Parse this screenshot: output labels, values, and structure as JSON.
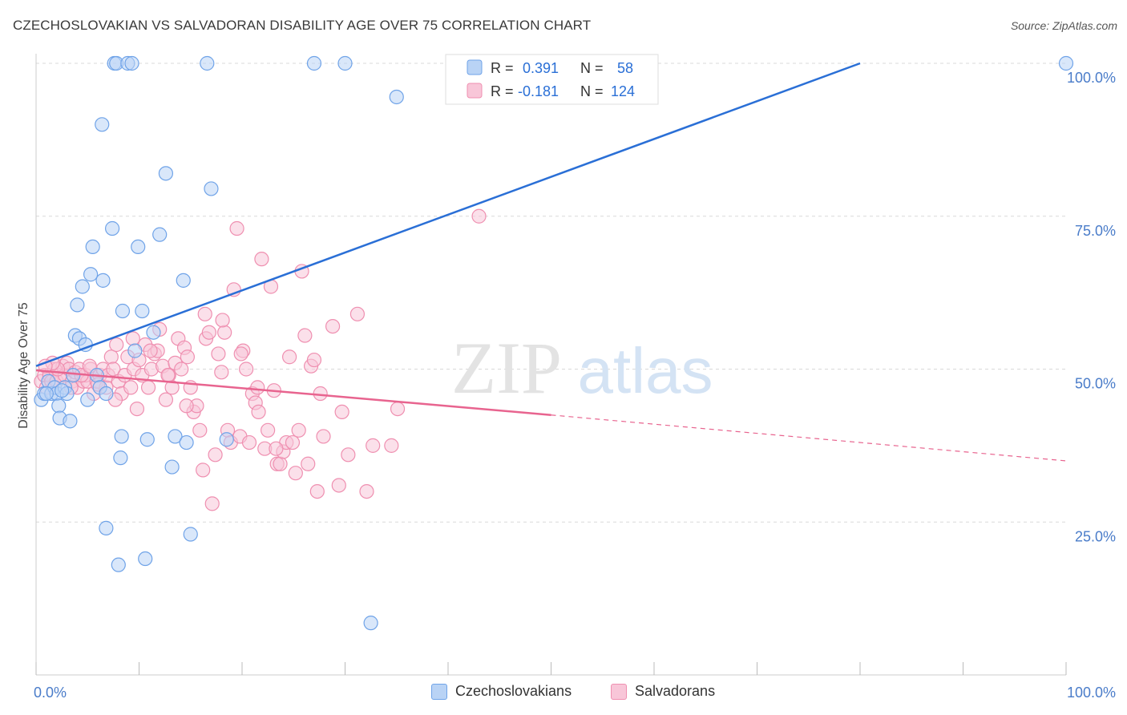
{
  "title": "CZECHOSLOVAKIAN VS SALVADORAN DISABILITY AGE OVER 75 CORRELATION CHART",
  "source_label": "Source: ZipAtlas.com",
  "watermark": {
    "zip": "ZIP",
    "atlas": "atlas"
  },
  "colors": {
    "blue": "#6fa3e8",
    "blue_fill": "#b9d3f5",
    "blue_line": "#2a6fd6",
    "pink": "#ef8fb0",
    "pink_fill": "#f8c6d8",
    "pink_line": "#e8648f",
    "axis_text": "#4a7cc9",
    "grid": "#d9d9d9"
  },
  "legend_top": {
    "rows": [
      {
        "r_label": "R =",
        "r_value": "0.391",
        "n_label": "N =",
        "n_value": "58",
        "color": "blue"
      },
      {
        "r_label": "R =",
        "r_value": "-0.181",
        "n_label": "N =",
        "n_value": "124",
        "color": "pink"
      }
    ]
  },
  "legend_bottom": [
    {
      "label": "Czechoslovakians",
      "color": "blue"
    },
    {
      "label": "Salvadorans",
      "color": "pink"
    }
  ],
  "chart_data": {
    "type": "scatter",
    "title": "CZECHOSLOVAKIAN VS SALVADORAN DISABILITY AGE OVER 75 CORRELATION CHART",
    "xlabel": "",
    "ylabel": "Disability Age Over 75",
    "xlim": [
      0,
      100
    ],
    "ylim": [
      0,
      100
    ],
    "x_tick_labels": [
      "0.0%",
      "100.0%"
    ],
    "y_ticks": [
      25,
      50,
      75,
      100
    ],
    "y_tick_labels": [
      "25.0%",
      "50.0%",
      "75.0%",
      "100.0%"
    ],
    "grid": true,
    "series": [
      {
        "name": "Czechoslovakians",
        "r": 0.391,
        "n": 58,
        "trend": {
          "x": [
            0,
            80
          ],
          "y": [
            50.5,
            100
          ],
          "dashed_extension": false
        },
        "points": [
          [
            0.5,
            45
          ],
          [
            0.8,
            46
          ],
          [
            1.2,
            48
          ],
          [
            1.5,
            46
          ],
          [
            1.8,
            47
          ],
          [
            2,
            46
          ],
          [
            2.2,
            44
          ],
          [
            2.3,
            42
          ],
          [
            2.8,
            47
          ],
          [
            3,
            46
          ],
          [
            3.3,
            41.5
          ],
          [
            3.6,
            49
          ],
          [
            3.8,
            55.5
          ],
          [
            4,
            60.5
          ],
          [
            4.2,
            55
          ],
          [
            4.5,
            63.5
          ],
          [
            4.8,
            54
          ],
          [
            5,
            45
          ],
          [
            5.3,
            65.5
          ],
          [
            5.5,
            70
          ],
          [
            5.9,
            49
          ],
          [
            6.2,
            47
          ],
          [
            6.4,
            90
          ],
          [
            6.5,
            64.5
          ],
          [
            6.8,
            46
          ],
          [
            7.4,
            73
          ],
          [
            7.6,
            100
          ],
          [
            7.8,
            100
          ],
          [
            8.2,
            35.5
          ],
          [
            8.3,
            39
          ],
          [
            8.4,
            59.5
          ],
          [
            8.9,
            100
          ],
          [
            9.3,
            100
          ],
          [
            9.6,
            53
          ],
          [
            9.9,
            70
          ],
          [
            10.3,
            59.5
          ],
          [
            10.6,
            19
          ],
          [
            10.8,
            38.5
          ],
          [
            11.4,
            56
          ],
          [
            12,
            72
          ],
          [
            12.6,
            82
          ],
          [
            13.2,
            34
          ],
          [
            13.5,
            39
          ],
          [
            14.3,
            64.5
          ],
          [
            14.6,
            38
          ],
          [
            15,
            23
          ],
          [
            16.6,
            100
          ],
          [
            17,
            79.5
          ],
          [
            18.5,
            38.5
          ],
          [
            27,
            100
          ],
          [
            30,
            100
          ],
          [
            32.5,
            8.5
          ],
          [
            35,
            94.5
          ],
          [
            100,
            100
          ],
          [
            8.0,
            18
          ],
          [
            6.8,
            24
          ],
          [
            1.0,
            46
          ],
          [
            2.5,
            46.5
          ]
        ]
      },
      {
        "name": "Salvadorans",
        "r": -0.181,
        "n": 124,
        "trend": {
          "x": [
            0,
            50
          ],
          "y": [
            49.8,
            42.5
          ],
          "dashed_extension": true,
          "dash_to": [
            100,
            35
          ]
        },
        "points": [
          [
            0.5,
            48
          ],
          [
            0.8,
            49
          ],
          [
            1,
            47
          ],
          [
            1.3,
            49
          ],
          [
            1.5,
            48
          ],
          [
            1.8,
            50
          ],
          [
            2,
            48
          ],
          [
            2.3,
            49
          ],
          [
            2.6,
            50.5
          ],
          [
            2.8,
            49
          ],
          [
            3,
            51
          ],
          [
            3.2,
            50
          ],
          [
            3.5,
            48
          ],
          [
            3.8,
            49.5
          ],
          [
            4,
            47
          ],
          [
            4.2,
            50
          ],
          [
            4.6,
            48
          ],
          [
            4.8,
            49
          ],
          [
            5,
            48
          ],
          [
            5.3,
            50
          ],
          [
            5.6,
            46
          ],
          [
            5.9,
            48
          ],
          [
            6.2,
            49
          ],
          [
            6.5,
            50
          ],
          [
            6.8,
            47
          ],
          [
            7,
            49
          ],
          [
            7.3,
            52
          ],
          [
            7.5,
            50
          ],
          [
            7.8,
            54
          ],
          [
            8,
            48
          ],
          [
            8.3,
            46
          ],
          [
            8.6,
            49
          ],
          [
            8.9,
            52
          ],
          [
            9.2,
            47
          ],
          [
            9.5,
            50
          ],
          [
            9.8,
            43.5
          ],
          [
            10,
            51.5
          ],
          [
            10.3,
            49
          ],
          [
            10.6,
            54
          ],
          [
            10.9,
            47
          ],
          [
            11.2,
            50
          ],
          [
            11.5,
            52.5
          ],
          [
            11.8,
            53
          ],
          [
            12,
            56.5
          ],
          [
            12.3,
            50.5
          ],
          [
            12.6,
            45
          ],
          [
            12.9,
            49
          ],
          [
            13.2,
            47
          ],
          [
            13.5,
            51
          ],
          [
            13.8,
            55
          ],
          [
            14.1,
            50
          ],
          [
            14.4,
            53.5
          ],
          [
            14.7,
            52
          ],
          [
            15,
            47
          ],
          [
            15.3,
            43
          ],
          [
            15.6,
            44
          ],
          [
            15.9,
            40
          ],
          [
            16.2,
            33.5
          ],
          [
            16.5,
            55
          ],
          [
            16.8,
            56
          ],
          [
            17.1,
            28
          ],
          [
            17.4,
            36
          ],
          [
            17.7,
            52.5
          ],
          [
            18,
            49.5
          ],
          [
            18.3,
            56
          ],
          [
            18.6,
            40
          ],
          [
            18.9,
            38
          ],
          [
            19.2,
            63
          ],
          [
            19.5,
            73
          ],
          [
            19.8,
            39
          ],
          [
            20.1,
            53
          ],
          [
            20.4,
            50
          ],
          [
            20.7,
            38
          ],
          [
            21,
            46
          ],
          [
            21.3,
            44.5
          ],
          [
            21.6,
            43
          ],
          [
            21.9,
            68
          ],
          [
            22.2,
            37
          ],
          [
            22.5,
            40
          ],
          [
            22.8,
            63.5
          ],
          [
            23.1,
            46.5
          ],
          [
            23.4,
            34.5
          ],
          [
            23.7,
            34.5
          ],
          [
            24,
            36.5
          ],
          [
            24.3,
            38
          ],
          [
            24.6,
            52
          ],
          [
            24.9,
            38
          ],
          [
            25.2,
            33
          ],
          [
            25.5,
            40
          ],
          [
            25.8,
            66
          ],
          [
            26.1,
            55.5
          ],
          [
            26.4,
            34.5
          ],
          [
            26.7,
            50.5
          ],
          [
            27,
            51.5
          ],
          [
            27.3,
            30
          ],
          [
            27.6,
            46
          ],
          [
            27.9,
            39
          ],
          [
            28.8,
            57
          ],
          [
            29.4,
            31
          ],
          [
            29.7,
            43
          ],
          [
            30.3,
            36
          ],
          [
            31.2,
            59
          ],
          [
            32.1,
            30
          ],
          [
            32.7,
            37.5
          ],
          [
            34.5,
            37.5
          ],
          [
            35.1,
            43.5
          ],
          [
            43,
            75
          ],
          [
            2.1,
            50
          ],
          [
            3.4,
            47
          ],
          [
            4.4,
            49
          ],
          [
            5.2,
            50.5
          ],
          [
            6,
            47.5
          ],
          [
            7.7,
            45
          ],
          [
            9.4,
            55
          ],
          [
            11.1,
            53
          ],
          [
            12.8,
            49
          ],
          [
            14.6,
            44
          ],
          [
            16.4,
            59
          ],
          [
            18.1,
            58
          ],
          [
            19.9,
            52.5
          ],
          [
            21.5,
            47
          ],
          [
            23.3,
            37
          ],
          [
            1.6,
            51
          ],
          [
            0.9,
            50.5
          ]
        ]
      }
    ]
  }
}
